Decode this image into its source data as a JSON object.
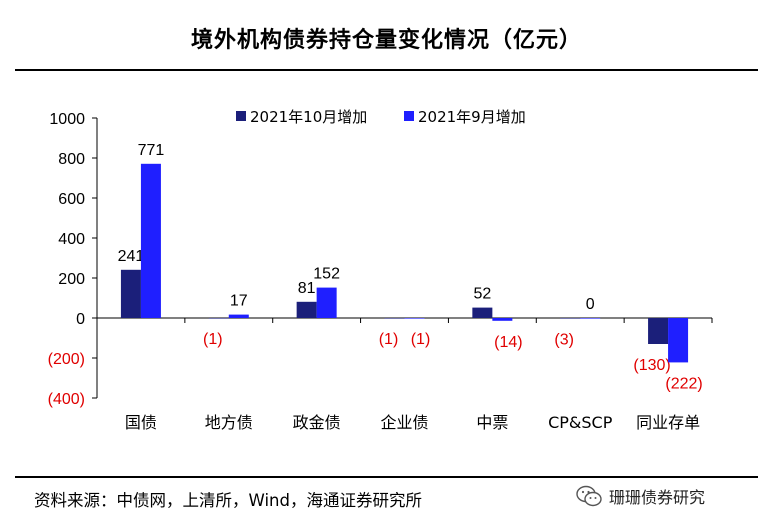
{
  "title": "境外机构债券持仓量变化情况（亿元）",
  "footer": "资料来源：中债网，上清所，Wind，海通证券研究所",
  "watermark": "珊珊债券研究",
  "chart_data": {
    "type": "bar",
    "title": "境外机构债券持仓量变化情况（亿元）",
    "categories": [
      "国债",
      "地方债",
      "政金债",
      "企业债",
      "中票",
      "CP&SCP",
      "同业存单"
    ],
    "series": [
      {
        "name": "2021年10月增加",
        "color": "#1b1f7a",
        "values": [
          241,
          -1,
          81,
          -1,
          52,
          -3,
          -130
        ]
      },
      {
        "name": "2021年9月增加",
        "color": "#1f1fff",
        "values": [
          771,
          17,
          152,
          -1,
          -14,
          0,
          -222
        ]
      }
    ],
    "data_labels": [
      [
        "241",
        "(1)",
        "81",
        "(1)",
        "52",
        "(3)",
        "(130)"
      ],
      [
        "771",
        "17",
        "152",
        "(1)",
        "(14)",
        "0",
        "(222)"
      ]
    ],
    "yticks": [
      "1000",
      "800",
      "600",
      "400",
      "200",
      "0",
      "(200)",
      "(400)"
    ],
    "ytick_values": [
      1000,
      800,
      600,
      400,
      200,
      0,
      -200,
      -400
    ],
    "ylim": [
      -400,
      1000
    ],
    "legend_position": "top",
    "negative_label_color": "#e00000",
    "xlabel": "",
    "ylabel": ""
  }
}
